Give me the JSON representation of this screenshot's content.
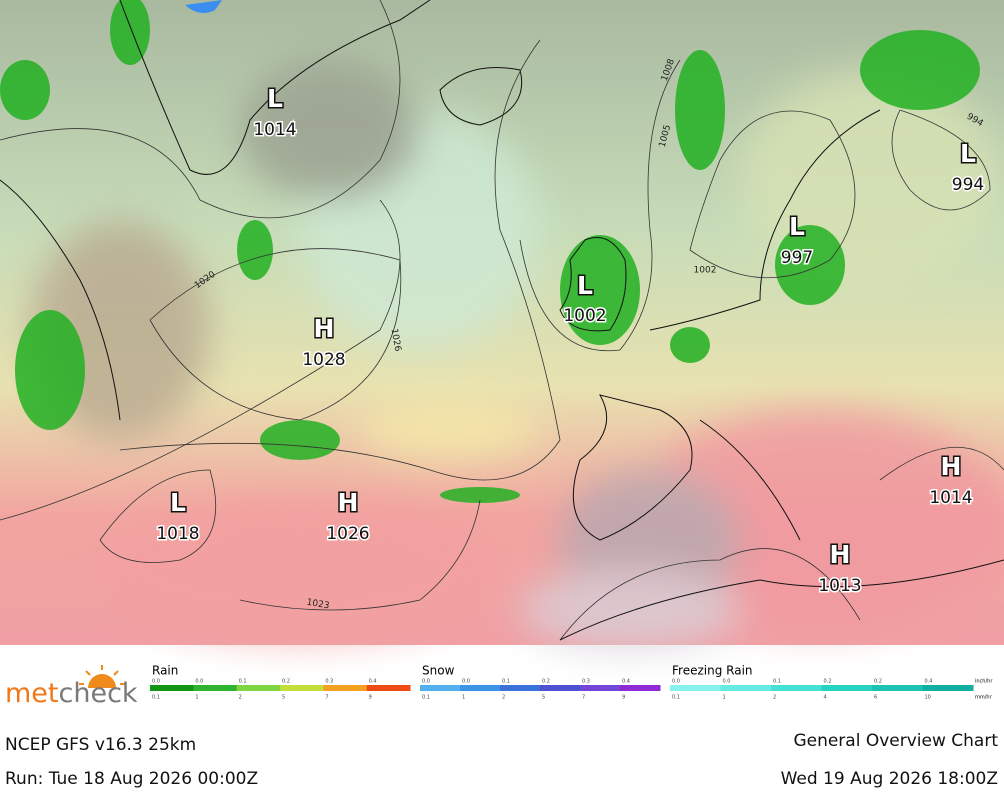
{
  "map": {
    "pressure_centers": [
      {
        "kind": "L",
        "value": 1014
      },
      {
        "kind": "L",
        "value": 994
      },
      {
        "kind": "L",
        "value": 997
      },
      {
        "kind": "L",
        "value": 1002
      },
      {
        "kind": "H",
        "value": 1028
      },
      {
        "kind": "H",
        "value": 1014
      },
      {
        "kind": "L",
        "value": 1018
      },
      {
        "kind": "H",
        "value": 1026
      },
      {
        "kind": "H",
        "value": 1013
      }
    ],
    "isobar_labels": [
      1020,
      1026,
      1023,
      1008,
      1005,
      1002,
      994
    ]
  },
  "legend": {
    "brand": [
      "met",
      "check"
    ],
    "scales": [
      {
        "title": "Rain",
        "top": [
          "0.0",
          "0.0",
          "0.1",
          "0.2",
          "0.3",
          "0.4"
        ],
        "bottom": [
          "0.1",
          "1",
          "2",
          "5",
          "7",
          "9"
        ],
        "colors": [
          "#129612",
          "#2fb42f",
          "#80d640",
          "#c6de3c",
          "#f4a020",
          "#ee4c12"
        ]
      },
      {
        "title": "Snow",
        "top": [
          "0.0",
          "0.0",
          "0.1",
          "0.2",
          "0.3",
          "0.4"
        ],
        "bottom": [
          "0.1",
          "1",
          "2",
          "5",
          "7",
          "9"
        ],
        "colors": [
          "#52b0f0",
          "#3c94e4",
          "#3a72da",
          "#4c52d2",
          "#7446d8",
          "#8e2ad6"
        ]
      },
      {
        "title": "Freezing Rain",
        "top": [
          "0.0",
          "0.0",
          "0.1",
          "0.2",
          "0.2",
          "0.4"
        ],
        "bottom": [
          "0.1",
          "1",
          "2",
          "4",
          "6",
          "10"
        ],
        "colors": [
          "#86f2ea",
          "#66eae2",
          "#44e2d4",
          "#26d2c2",
          "#1ec2b2",
          "#12b0a2"
        ]
      }
    ],
    "units": [
      "inch/hr",
      "mm/hr"
    ]
  },
  "footer": {
    "model": "NCEP GFS v16.3 25km",
    "run": "Run: Tue 18 Aug 2026 00:00Z",
    "chart": "General Overview Chart",
    "valid": "Wed 19 Aug 2026 18:00Z"
  }
}
